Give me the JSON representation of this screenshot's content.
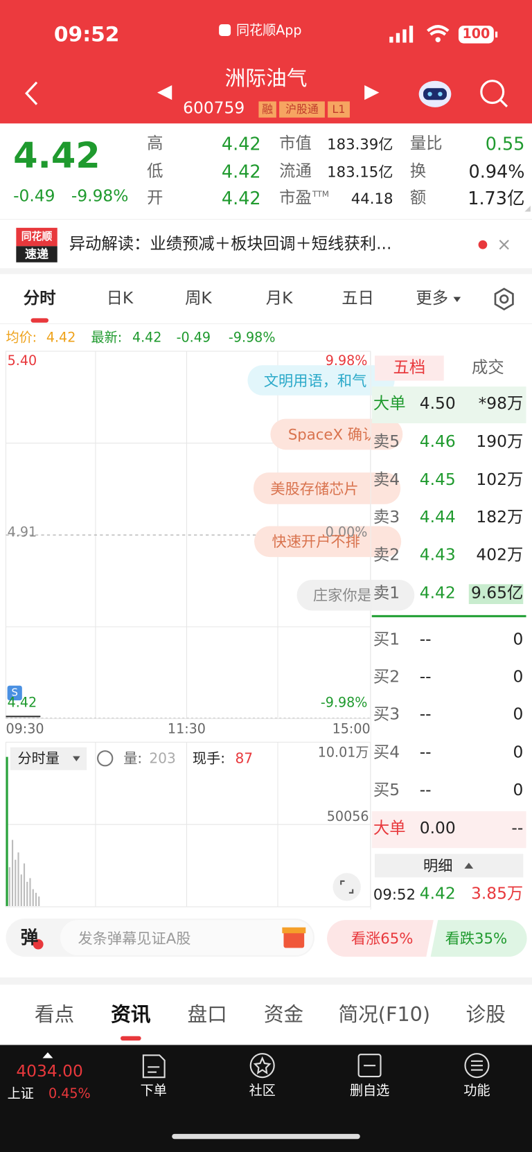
{
  "status": {
    "time": "09:52",
    "app": "同花顺App",
    "battery": "100"
  },
  "header": {
    "name": "洲际油气",
    "code": "600759",
    "tags": [
      "融",
      "沪股通",
      "L1"
    ]
  },
  "quote": {
    "price": "4.42",
    "change": "-0.49",
    "pct": "-9.98%",
    "stats": [
      {
        "label": "高",
        "value": "4.42"
      },
      {
        "label": "低",
        "value": "4.42"
      },
      {
        "label": "开",
        "value": "4.42"
      },
      {
        "label": "市值",
        "value": "183.39亿"
      },
      {
        "label": "流通",
        "value": "183.15亿"
      },
      {
        "label": "市盈",
        "sup": "TTM",
        "value": "44.18"
      },
      {
        "label": "量比",
        "value": "0.55"
      },
      {
        "label": "换",
        "value": "0.94%"
      },
      {
        "label": "额",
        "value": "1.73亿"
      }
    ]
  },
  "news": {
    "badge": [
      "同花顺",
      "速递"
    ],
    "text": "异动解读：业绩预减＋板块回调＋短线获利..."
  },
  "tabs": [
    "分时",
    "日K",
    "周K",
    "月K",
    "五日",
    "更多"
  ],
  "chart": {
    "avg_label": "均价:",
    "avg": "4.42",
    "last_label": "最新:",
    "last": "4.42",
    "change": "-0.49",
    "pct": "-9.98%",
    "y_labels": [
      "5.40",
      "4.91",
      "4.42"
    ],
    "pct_labels": [
      "9.98%",
      "0.00%",
      "-9.98%"
    ],
    "times": [
      "09:30",
      "11:30",
      "15:00"
    ],
    "marker": "S",
    "danmaku": [
      "文明用语，和气",
      "SpaceX 确认",
      "美股存储芯片",
      "快速开户不排",
      "庄家你是"
    ]
  },
  "volume": {
    "selector": "分时量",
    "vol_label": "量:",
    "vol": "203",
    "hand_label": "现手:",
    "hand": "87",
    "scale": [
      "10.01万",
      "50056"
    ]
  },
  "book": {
    "tabs": [
      "五档",
      "成交"
    ],
    "big_top": {
      "label": "大单",
      "price": "4.50",
      "vol": "*98万"
    },
    "sell": [
      {
        "label": "卖5",
        "price": "4.46",
        "vol": "190万"
      },
      {
        "label": "卖4",
        "price": "4.45",
        "vol": "102万"
      },
      {
        "label": "卖3",
        "price": "4.44",
        "vol": "182万"
      },
      {
        "label": "卖2",
        "price": "4.43",
        "vol": "402万"
      },
      {
        "label": "卖1",
        "price": "4.42",
        "vol": "9.65亿"
      }
    ],
    "buy": [
      {
        "label": "买1",
        "price": "--",
        "vol": "0"
      },
      {
        "label": "买2",
        "price": "--",
        "vol": "0"
      },
      {
        "label": "买3",
        "price": "--",
        "vol": "0"
      },
      {
        "label": "买4",
        "price": "--",
        "vol": "0"
      },
      {
        "label": "买5",
        "price": "--",
        "vol": "0"
      }
    ],
    "big_bottom": {
      "label": "大单",
      "price": "0.00",
      "vol": "--"
    },
    "detail": "明细",
    "trade": {
      "time": "09:52",
      "price": "4.42",
      "vol": "3.85万"
    }
  },
  "comment": {
    "icon": "弹",
    "placeholder": "发条弹幕见证A股",
    "bull": "看涨65%",
    "bear": "看跌35%"
  },
  "section_tabs": [
    "看点",
    "资讯",
    "盘口",
    "资金",
    "简况(F10)",
    "诊股"
  ],
  "nav": {
    "index": "4034.00",
    "index_name": "上证",
    "index_pct": "0.45%",
    "items": [
      "下单",
      "社区",
      "删自选",
      "功能"
    ]
  }
}
